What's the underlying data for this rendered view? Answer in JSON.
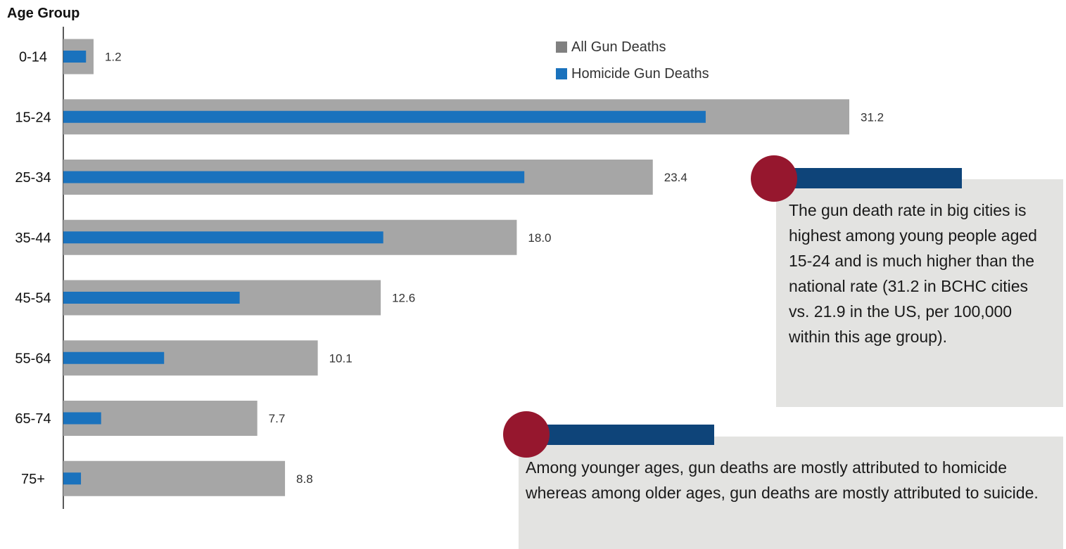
{
  "chart_data": {
    "type": "bar",
    "orientation": "horizontal",
    "ylabel": "Age Group",
    "categories": [
      "0-14",
      "15-24",
      "25-34",
      "35-44",
      "45-54",
      "55-64",
      "65-74",
      "75+"
    ],
    "series": [
      {
        "name": "All Gun Deaths",
        "color": "#a6a6a6",
        "values": [
          1.2,
          31.2,
          23.4,
          18.0,
          12.6,
          10.1,
          7.7,
          8.8
        ]
      },
      {
        "name": "Homicide Gun Deaths",
        "color": "#1a72bd",
        "values": [
          0.9,
          25.5,
          18.3,
          12.7,
          7.0,
          4.0,
          1.5,
          0.7
        ]
      }
    ],
    "data_labels": [
      "1.2",
      "31.2",
      "23.4",
      "18.0",
      "12.6",
      "10.1",
      "7.7",
      "8.8"
    ],
    "xlim": [
      0,
      31.2
    ],
    "grid": false,
    "legend_position": "top-center"
  },
  "callouts": [
    {
      "text": "The gun death rate in big cities is highest among young people aged 15-24 and is much higher than the national rate (31.2 in BCHC cities vs. 21.9 in the US, per 100,000 within this age group)."
    },
    {
      "text": "Among younger ages, gun deaths are mostly attributed to homicide whereas among older ages, gun deaths are mostly attributed to suicide."
    }
  ],
  "colors": {
    "callout_accent_dot": "#96172e",
    "callout_accent_bar": "#0e4479",
    "callout_background": "#e3e3e1"
  }
}
